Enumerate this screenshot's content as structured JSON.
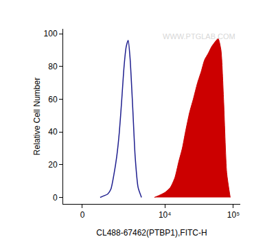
{
  "chart_data": {
    "type": "histogram",
    "x_label": "CL488-67462(PTBP1),FITC-H",
    "y_label": "Relative Cell Number",
    "annotations": [
      {
        "text": "WWW.PTGLAB.COM"
      }
    ],
    "x": [
      800,
      1000,
      1200,
      1400,
      1600,
      1800,
      2000,
      2200,
      2400,
      2600,
      2800,
      3000,
      3300,
      3600,
      4000,
      4500,
      7000,
      8000,
      9000,
      10000,
      12000,
      14000,
      16000,
      18000,
      20000,
      23000,
      26000,
      30000,
      34000,
      38000,
      43000,
      48000,
      54000,
      60000,
      66000,
      72000,
      80000,
      90000
    ],
    "series": [
      {
        "type": "line",
        "color": "#1f1f8f",
        "values": [
          0,
          1,
          2,
          5,
          14,
          25,
          40,
          60,
          80,
          92,
          96,
          85,
          55,
          25,
          6,
          0,
          null,
          null,
          null,
          null,
          null,
          null,
          null,
          null,
          null,
          null,
          null,
          null,
          null,
          null,
          null,
          null,
          null,
          null,
          null,
          null,
          null,
          null
        ]
      },
      {
        "type": "area",
        "color": "#cc0000",
        "values": [
          null,
          null,
          null,
          null,
          null,
          null,
          null,
          null,
          null,
          null,
          null,
          null,
          null,
          null,
          null,
          null,
          0,
          1,
          2,
          3,
          6,
          12,
          22,
          30,
          40,
          52,
          60,
          70,
          77,
          84,
          88,
          92,
          95,
          97,
          90,
          60,
          15,
          0
        ]
      }
    ],
    "xlim": [
      -870,
      126000
    ],
    "xticks": [
      0,
      {
        "value": 10000,
        "label": "10⁴"
      },
      {
        "value": 100000,
        "label": "10⁵"
      }
    ],
    "ylim": [
      -4,
      103
    ],
    "yticks": [
      0,
      20,
      40,
      60,
      80,
      100
    ],
    "grid": false
  }
}
